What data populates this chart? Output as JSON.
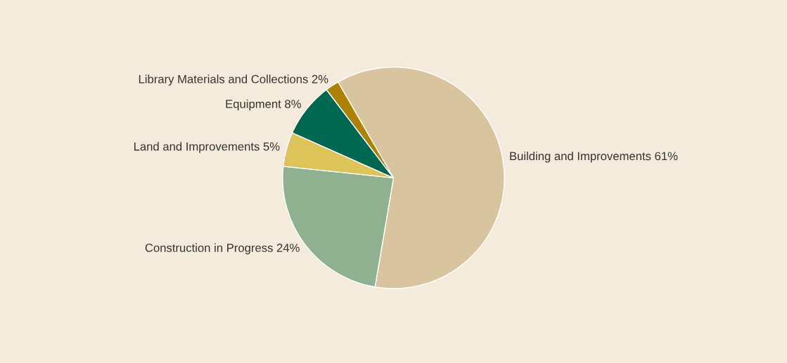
{
  "chart_data": {
    "type": "pie",
    "categories": [
      "Building and Improvements 61%",
      "Construction in Progress 24%",
      "Land and Improvements 5%",
      "Equipment 8%",
      "Library Materials and Collections 2%"
    ],
    "values": [
      61,
      24,
      5,
      8,
      2
    ],
    "colors": [
      "#d8c5a0",
      "#8fb18f",
      "#dcc45a",
      "#006850",
      "#ad8204"
    ]
  }
}
